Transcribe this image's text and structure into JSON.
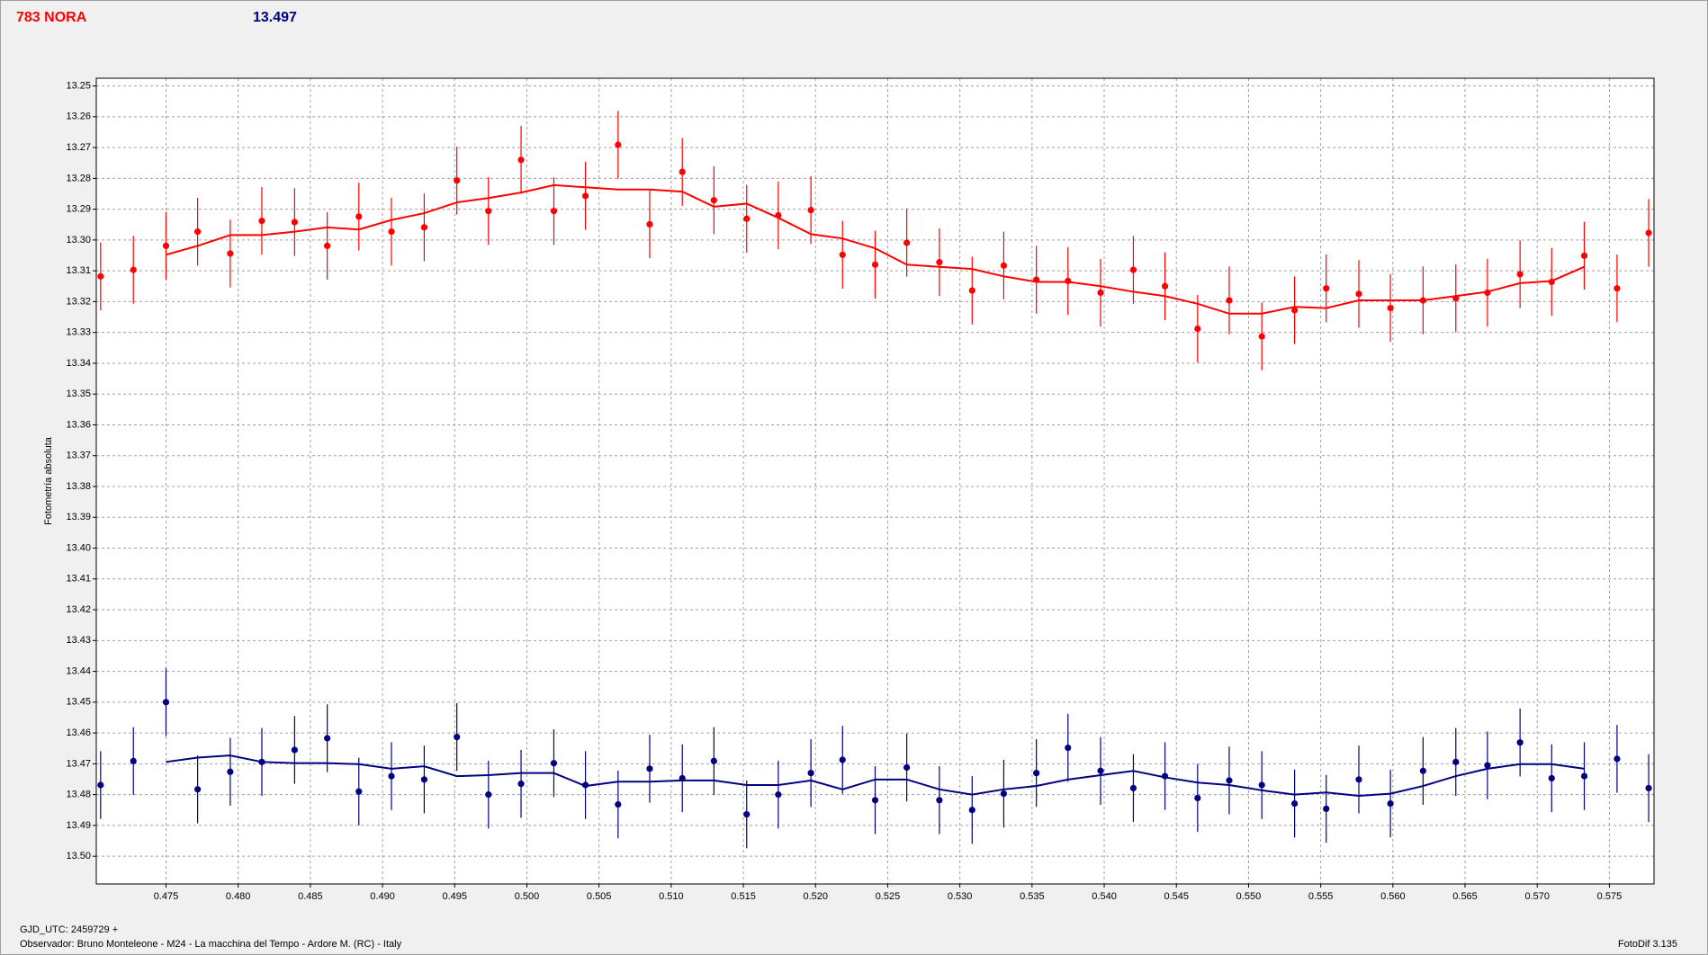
{
  "chart_data": {
    "type": "errorbar",
    "title": "783 NORA",
    "subtitle": "13.497",
    "ylabel": "Fotometría absoluta",
    "xlabel": "GJD_UTC: 2459729 +",
    "footer": "Observador: Bruno Monteleone - M24 - La macchina del Tempo - Ardore M. (RC) - Italy",
    "software": "FotoDif 3.135",
    "xlim": [
      0.47017,
      0.57809
    ],
    "ylim": [
      13.509,
      13.2475
    ],
    "xticks": [
      0.475,
      {
        "value": 0.48,
        "label": "0.480"
      },
      0.485,
      {
        "value": 0.49,
        "label": "0.490"
      },
      0.495,
      {
        "value": 0.5,
        "label": "0.500"
      },
      0.505,
      {
        "value": 0.51,
        "label": "0.510"
      },
      0.515,
      {
        "value": 0.52,
        "label": "0.520"
      },
      0.525,
      {
        "value": 0.53,
        "label": "0.530"
      },
      0.535,
      {
        "value": 0.54,
        "label": "0.540"
      },
      0.545,
      {
        "value": 0.55,
        "label": "0.550"
      },
      0.555,
      {
        "value": 0.56,
        "label": "0.560"
      },
      0.565,
      {
        "value": 0.57,
        "label": "0.570"
      },
      0.575
    ],
    "yticks": [
      13.25,
      13.26,
      13.27,
      13.28,
      13.29,
      {
        "value": 13.3,
        "label": "13.30"
      },
      13.31,
      13.32,
      13.33,
      13.34,
      13.35,
      13.36,
      13.37,
      13.38,
      13.39,
      {
        "value": 13.4,
        "label": "13.40"
      },
      13.41,
      13.42,
      13.43,
      13.44,
      13.45,
      13.46,
      13.47,
      13.48,
      13.49,
      {
        "value": 13.5,
        "label": "13.50"
      }
    ],
    "grid": true,
    "x": [
      0.47047,
      0.47274,
      0.475,
      0.47719,
      0.47945,
      0.48164,
      0.48391,
      0.48617,
      0.48836,
      0.49062,
      0.49289,
      0.49515,
      0.49734,
      0.4996,
      0.50187,
      0.50406,
      0.50632,
      0.50851,
      0.51077,
      0.51296,
      0.51523,
      0.51742,
      0.51968,
      0.52187,
      0.52413,
      0.52632,
      0.52858,
      0.53085,
      0.53304,
      0.5353,
      0.53749,
      0.53975,
      0.54202,
      0.54421,
      0.54647,
      0.54866,
      0.55092,
      0.55319,
      0.55538,
      0.55764,
      0.55983,
      0.56209,
      0.56436,
      0.56655,
      0.56881,
      0.571,
      0.57326,
      0.57553,
      0.57772
    ],
    "series": [
      {
        "color": "#ff0000",
        "error": 0.011,
        "values": [
          13.3118,
          13.3097,
          13.3019,
          13.2973,
          13.3044,
          13.2938,
          13.2942,
          13.3019,
          13.2924,
          13.2973,
          13.2959,
          13.2807,
          13.2906,
          13.274,
          13.2906,
          13.2857,
          13.2691,
          13.2949,
          13.2779,
          13.2871,
          13.2931,
          13.292,
          13.2903,
          13.3048,
          13.308,
          13.3009,
          13.3072,
          13.3164,
          13.3083,
          13.3129,
          13.3133,
          13.3171,
          13.3097,
          13.315,
          13.3288,
          13.3196,
          13.3313,
          13.3228,
          13.3157,
          13.3175,
          13.3221,
          13.3196,
          13.3189,
          13.3171,
          13.3111,
          13.3136,
          13.3051,
          13.3157,
          13.2977
        ],
        "fit": [
          null,
          null,
          13.3048,
          13.3019,
          13.2984,
          13.2984,
          13.2973,
          13.2959,
          13.2966,
          13.2935,
          13.2913,
          13.2878,
          13.2864,
          13.2846,
          13.2822,
          13.2829,
          13.2836,
          13.2836,
          13.2843,
          13.2892,
          13.2882,
          13.2928,
          13.2981,
          13.2995,
          13.3027,
          13.308,
          13.3087,
          13.3094,
          13.3118,
          13.3136,
          13.3136,
          13.315,
          13.3168,
          13.3182,
          13.3207,
          13.3239,
          13.3239,
          13.3217,
          13.3221,
          13.3196,
          13.3196,
          13.3196,
          13.3182,
          13.3168,
          13.314,
          13.3133,
          13.3087,
          null,
          null
        ]
      },
      {
        "color": "#000080",
        "error": 0.011,
        "values": [
          13.4769,
          13.4691,
          13.45,
          13.4783,
          13.4726,
          13.4694,
          13.4655,
          13.4617,
          13.479,
          13.474,
          13.4751,
          13.4613,
          13.48,
          13.4765,
          13.4698,
          13.4769,
          13.4832,
          13.4716,
          13.4747,
          13.4691,
          13.4864,
          13.48,
          13.473,
          13.4687,
          13.4818,
          13.4712,
          13.4818,
          13.485,
          13.4797,
          13.473,
          13.4648,
          13.4723,
          13.4779,
          13.474,
          13.4811,
          13.4754,
          13.4769,
          13.4829,
          13.4846,
          13.4751,
          13.4829,
          13.4723,
          13.4694,
          13.4705,
          13.4631,
          13.4747,
          13.474,
          13.4684,
          13.4779
        ],
        "fit": [
          null,
          null,
          13.4694,
          13.468,
          13.4673,
          13.4694,
          13.4698,
          13.4698,
          13.4701,
          13.4716,
          13.4708,
          13.474,
          13.4737,
          13.473,
          13.473,
          13.4772,
          13.4758,
          13.4758,
          13.4754,
          13.4754,
          13.4769,
          13.4769,
          13.4754,
          13.4783,
          13.4751,
          13.4751,
          13.4783,
          13.48,
          13.4783,
          13.4772,
          13.4751,
          13.4737,
          13.4723,
          13.4744,
          13.4761,
          13.4769,
          13.4786,
          13.48,
          13.4793,
          13.4804,
          13.4797,
          13.4772,
          13.474,
          13.4716,
          13.4701,
          13.4701,
          13.4716,
          null,
          null
        ]
      }
    ]
  }
}
